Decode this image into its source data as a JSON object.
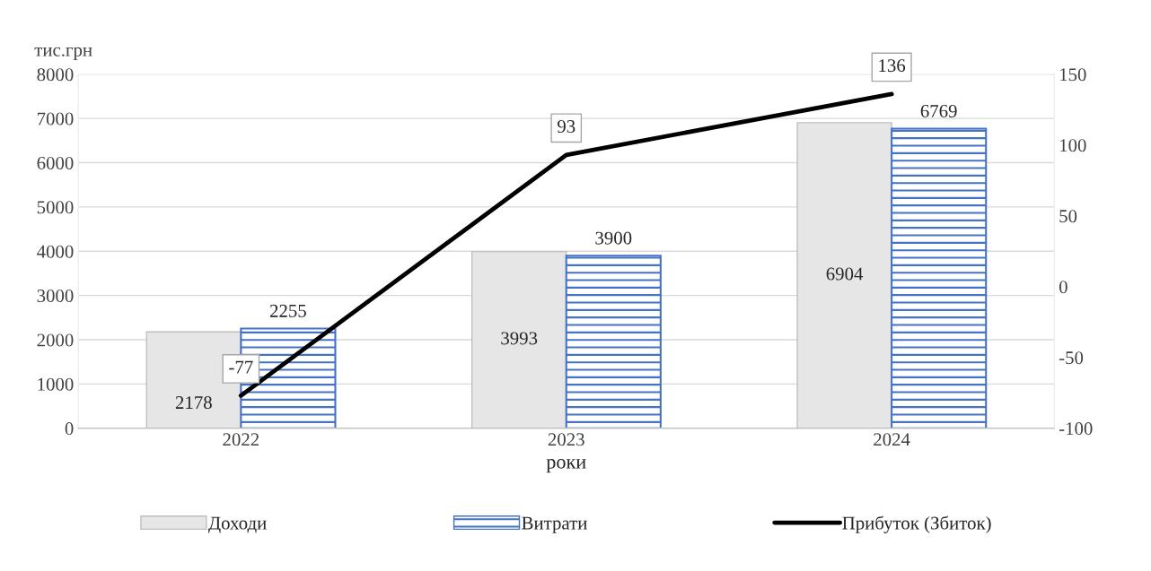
{
  "chart_data": {
    "type": "bar",
    "xlabel": "роки",
    "ylabel": "тис.грн",
    "categories": [
      "2022",
      "2023",
      "2024"
    ],
    "series": [
      {
        "name": "Доходи",
        "color": "#e7e6e6",
        "values": [
          2178,
          3993,
          6904
        ]
      },
      {
        "name": "Витрати",
        "color": "#4472c4",
        "values": [
          2255,
          3900,
          6769
        ]
      },
      {
        "name": "Прибуток (Збиток)",
        "type": "line",
        "axis": "y2",
        "color": "#000000",
        "values": [
          -77,
          93,
          136
        ]
      }
    ],
    "ylim": [
      0,
      8000
    ],
    "yticks": [
      0,
      1000,
      2000,
      3000,
      4000,
      5000,
      6000,
      7000,
      8000
    ],
    "y2lim": [
      -100,
      150
    ],
    "y2ticks": [
      -100,
      -50,
      0,
      50,
      100,
      150
    ],
    "grid": "y",
    "legend": "bottom",
    "data_labels": true
  }
}
